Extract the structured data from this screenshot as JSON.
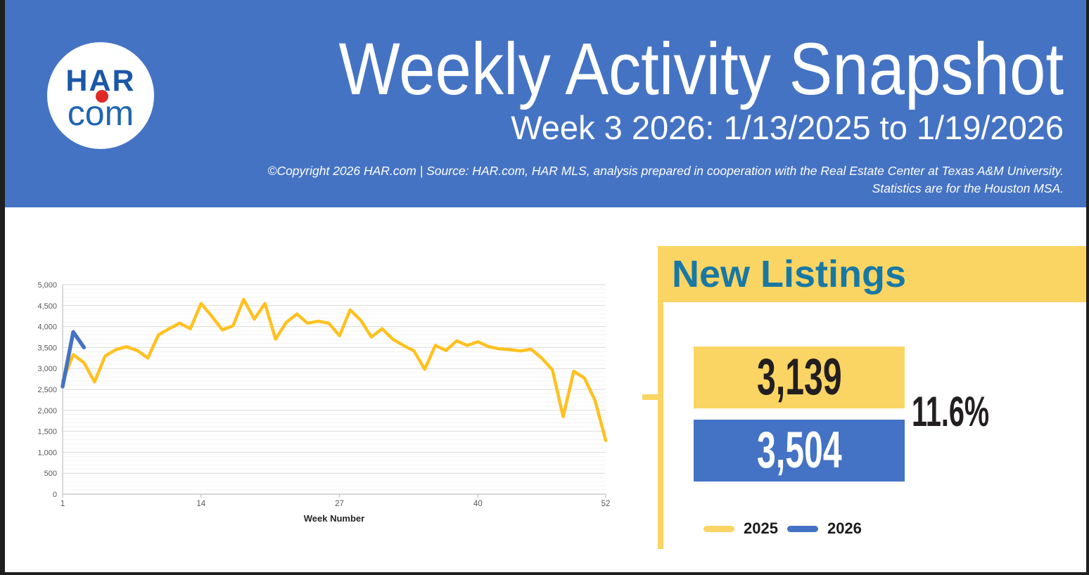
{
  "header": {
    "logo_top": "HAR",
    "logo_bottom": "com",
    "title": "Weekly Activity Snapshot",
    "subtitle": "Week 3 2026: 1/13/2025 to 1/19/2026",
    "copyright_line1": "©Copyright 2026 HAR.com  |  Source: HAR.com, HAR MLS, analysis prepared in cooperation with the Real Estate Center at Texas A&M University.",
    "copyright_line2": "Statistics are for the Houston MSA."
  },
  "panel": {
    "title": "New Listings",
    "prior_year_value": "3,139",
    "current_year_value": "3,504",
    "change_percent": "11.6%",
    "legend": [
      {
        "label": "2025",
        "color": "#FBD563"
      },
      {
        "label": "2026",
        "color": "#4472C4"
      }
    ]
  },
  "colors": {
    "header_blue": "#4573C4",
    "panel_yellow": "#FBD563",
    "series_yellow": "#FFC121",
    "series_blue": "#4472C4",
    "banner_text_teal": "#1878A4",
    "grid_major": "#D9D9D9",
    "grid_minor": "#F3F3F3",
    "axis_line": "#BFBFBF",
    "tick_text": "#595959"
  },
  "chart_data": {
    "type": "line",
    "title": "",
    "xlabel": "Week Number",
    "ylabel": "",
    "xlim": [
      1,
      52
    ],
    "ylim": [
      0,
      5000
    ],
    "grid": true,
    "legend_position": "right-panel",
    "xticks": [
      1,
      14,
      27,
      40,
      52
    ],
    "yticks": [
      {
        "v": 0,
        "label": "0"
      },
      {
        "v": 500,
        "label": "500"
      },
      {
        "v": 1000,
        "label": "1,000"
      },
      {
        "v": 1500,
        "label": "1,500"
      },
      {
        "v": 2000,
        "label": "2,000"
      },
      {
        "v": 2500,
        "label": "2,500"
      },
      {
        "v": 3000,
        "label": "3,000"
      },
      {
        "v": 3500,
        "label": "3,500"
      },
      {
        "v": 4000,
        "label": "4,000"
      },
      {
        "v": 4500,
        "label": "4,500"
      },
      {
        "v": 5000,
        "label": "5,000"
      }
    ],
    "minor_grid_step": 100,
    "series": [
      {
        "name": "2025",
        "color": "#FFC121",
        "stroke_width": 4.5,
        "values": [
          2700,
          3330,
          3139,
          2680,
          3300,
          3450,
          3520,
          3430,
          3250,
          3800,
          3950,
          4080,
          3950,
          4550,
          4250,
          3920,
          4020,
          4650,
          4180,
          4550,
          3700,
          4100,
          4300,
          4080,
          4130,
          4080,
          3780,
          4400,
          4150,
          3750,
          3950,
          3700,
          3550,
          3420,
          2980,
          3550,
          3430,
          3660,
          3550,
          3640,
          3520,
          3470,
          3450,
          3420,
          3460,
          3245,
          2965,
          1850,
          2935,
          2770,
          2235,
          1280
        ]
      },
      {
        "name": "2026",
        "color": "#4472C4",
        "stroke_width": 5.5,
        "x": [
          1,
          2,
          3
        ],
        "values": [
          2570,
          3870,
          3504
        ]
      }
    ]
  }
}
